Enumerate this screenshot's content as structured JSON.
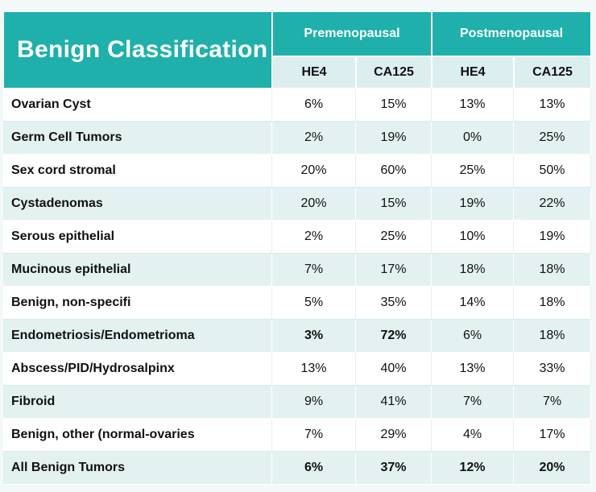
{
  "chart_data": {
    "type": "table",
    "title": "Benign Classification",
    "groups": [
      "Premenopausal",
      "Postmenopausal"
    ],
    "subheaders": [
      "HE4",
      "CA125",
      "HE4",
      "CA125"
    ],
    "rows": [
      {
        "label": "Ovarian Cyst",
        "values": [
          "6%",
          "15%",
          "13%",
          "13%"
        ],
        "bold": [
          false,
          false,
          false,
          false
        ]
      },
      {
        "label": "Germ Cell Tumors",
        "values": [
          "2%",
          "19%",
          "0%",
          "25%"
        ],
        "bold": [
          false,
          false,
          false,
          false
        ]
      },
      {
        "label": "Sex cord stromal",
        "values": [
          "20%",
          "60%",
          "25%",
          "50%"
        ],
        "bold": [
          false,
          false,
          false,
          false
        ]
      },
      {
        "label": "Cystadenomas",
        "values": [
          "20%",
          "15%",
          "19%",
          "22%"
        ],
        "bold": [
          false,
          false,
          false,
          false
        ]
      },
      {
        "label": "Serous epithelial",
        "values": [
          "2%",
          "25%",
          "10%",
          "19%"
        ],
        "bold": [
          false,
          false,
          false,
          false
        ]
      },
      {
        "label": "Mucinous epithelial",
        "values": [
          "7%",
          "17%",
          "18%",
          "18%"
        ],
        "bold": [
          false,
          false,
          false,
          false
        ]
      },
      {
        "label": "Benign, non-specifi",
        "values": [
          "5%",
          "35%",
          "14%",
          "18%"
        ],
        "bold": [
          false,
          false,
          false,
          false
        ]
      },
      {
        "label": "Endometriosis/Endometrioma",
        "values": [
          "3%",
          "72%",
          "6%",
          "18%"
        ],
        "bold": [
          true,
          true,
          false,
          false
        ]
      },
      {
        "label": "Abscess/PID/Hydrosalpinx",
        "values": [
          "13%",
          "40%",
          "13%",
          "33%"
        ],
        "bold": [
          false,
          false,
          false,
          false
        ]
      },
      {
        "label": "Fibroid",
        "values": [
          "9%",
          "41%",
          "7%",
          "7%"
        ],
        "bold": [
          false,
          false,
          false,
          false
        ]
      },
      {
        "label": "Benign, other (normal-ovaries",
        "values": [
          "7%",
          "29%",
          "4%",
          "17%"
        ],
        "bold": [
          false,
          false,
          false,
          false
        ]
      },
      {
        "label": "All Benign Tumors",
        "values": [
          "6%",
          "37%",
          "12%",
          "20%"
        ],
        "bold": [
          true,
          true,
          true,
          true
        ]
      }
    ],
    "colors": {
      "header": "#1fb0ab",
      "subheader": "#dceeee",
      "row_alt": "#e3f1f1",
      "row": "#ffffff"
    }
  }
}
